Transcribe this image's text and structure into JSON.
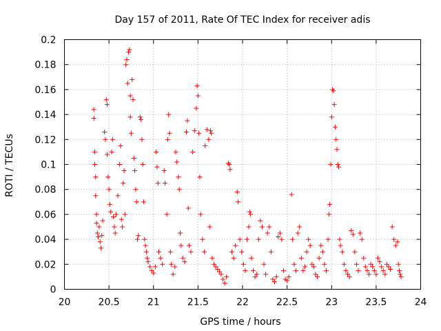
{
  "chart_data": {
    "type": "scatter",
    "title": "Day 157 of 2011, Rate Of TEC Index for receiver adis",
    "xlabel": "GPS time / hours",
    "ylabel": "ROTI / TECUs",
    "xlim": [
      20,
      24
    ],
    "ylim": [
      0,
      0.2
    ],
    "xticks": [
      "20",
      "20.5",
      "21",
      "21.5",
      "22",
      "22.5",
      "23",
      "23.5",
      "24"
    ],
    "yticks": [
      "0",
      "0.02",
      "0.04",
      "0.06",
      "0.08",
      "0.1",
      "0.12",
      "0.14",
      "0.16",
      "0.18",
      "0.2"
    ],
    "grid": true,
    "marker": "plus",
    "series": [
      {
        "name": "ROTI",
        "color": "#ff0000",
        "points": [
          [
            20.33,
            0.144
          ],
          [
            20.33,
            0.137
          ],
          [
            20.34,
            0.11
          ],
          [
            20.34,
            0.1
          ],
          [
            20.35,
            0.09
          ],
          [
            20.35,
            0.075
          ],
          [
            20.36,
            0.06
          ],
          [
            20.36,
            0.053
          ],
          [
            20.37,
            0.045
          ],
          [
            20.38,
            0.042
          ],
          [
            20.39,
            0.05
          ],
          [
            20.4,
            0.038
          ],
          [
            20.41,
            0.033
          ],
          [
            20.42,
            0.043
          ],
          [
            20.43,
            0.055
          ],
          [
            20.45,
            0.126
          ],
          [
            20.46,
            0.12
          ],
          [
            20.47,
            0.152
          ],
          [
            20.48,
            0.148
          ],
          [
            20.48,
            0.108
          ],
          [
            20.49,
            0.09
          ],
          [
            20.5,
            0.08
          ],
          [
            20.51,
            0.068
          ],
          [
            20.52,
            0.062
          ],
          [
            20.53,
            0.11
          ],
          [
            20.54,
            0.12
          ],
          [
            20.55,
            0.058
          ],
          [
            20.56,
            0.05
          ],
          [
            20.57,
            0.045
          ],
          [
            20.58,
            0.06
          ],
          [
            20.6,
            0.075
          ],
          [
            20.62,
            0.1
          ],
          [
            20.63,
            0.115
          ],
          [
            20.64,
            0.056
          ],
          [
            20.65,
            0.05
          ],
          [
            20.66,
            0.085
          ],
          [
            20.67,
            0.095
          ],
          [
            20.68,
            0.06
          ],
          [
            20.69,
            0.18
          ],
          [
            20.7,
            0.184
          ],
          [
            20.71,
            0.165
          ],
          [
            20.72,
            0.19
          ],
          [
            20.73,
            0.192
          ],
          [
            20.74,
            0.155
          ],
          [
            20.74,
            0.138
          ],
          [
            20.75,
            0.125
          ],
          [
            20.76,
            0.168
          ],
          [
            20.77,
            0.152
          ],
          [
            20.78,
            0.105
          ],
          [
            20.79,
            0.095
          ],
          [
            20.8,
            0.08
          ],
          [
            20.81,
            0.07
          ],
          [
            20.82,
            0.04
          ],
          [
            20.83,
            0.043
          ],
          [
            20.85,
            0.138
          ],
          [
            20.86,
            0.136
          ],
          [
            20.87,
            0.12
          ],
          [
            20.88,
            0.1
          ],
          [
            20.89,
            0.07
          ],
          [
            20.9,
            0.04
          ],
          [
            20.91,
            0.035
          ],
          [
            20.92,
            0.03
          ],
          [
            20.93,
            0.025
          ],
          [
            20.94,
            0.022
          ],
          [
            20.96,
            0.018
          ],
          [
            20.98,
            0.015
          ],
          [
            21.0,
            0.013
          ],
          [
            21.02,
            0.018
          ],
          [
            21.03,
            0.11
          ],
          [
            21.04,
            0.098
          ],
          [
            21.05,
            0.085
          ],
          [
            21.06,
            0.03
          ],
          [
            21.08,
            0.025
          ],
          [
            21.1,
            0.02
          ],
          [
            21.12,
            0.095
          ],
          [
            21.13,
            0.085
          ],
          [
            21.15,
            0.06
          ],
          [
            21.16,
            0.12
          ],
          [
            21.17,
            0.14
          ],
          [
            21.18,
            0.125
          ],
          [
            21.19,
            0.03
          ],
          [
            21.2,
            0.02
          ],
          [
            21.22,
            0.012
          ],
          [
            21.24,
            0.018
          ],
          [
            21.25,
            0.11
          ],
          [
            21.26,
            0.102
          ],
          [
            21.28,
            0.09
          ],
          [
            21.29,
            0.08
          ],
          [
            21.3,
            0.045
          ],
          [
            21.31,
            0.035
          ],
          [
            21.33,
            0.025
          ],
          [
            21.35,
            0.022
          ],
          [
            21.37,
            0.126
          ],
          [
            21.38,
            0.135
          ],
          [
            21.39,
            0.065
          ],
          [
            21.4,
            0.035
          ],
          [
            21.42,
            0.03
          ],
          [
            21.44,
            0.11
          ],
          [
            21.46,
            0.127
          ],
          [
            21.48,
            0.145
          ],
          [
            21.49,
            0.163
          ],
          [
            21.5,
            0.155
          ],
          [
            21.51,
            0.125
          ],
          [
            21.52,
            0.09
          ],
          [
            21.53,
            0.06
          ],
          [
            21.55,
            0.04
          ],
          [
            21.57,
            0.03
          ],
          [
            21.58,
            0.115
          ],
          [
            21.6,
            0.128
          ],
          [
            21.62,
            0.12
          ],
          [
            21.63,
            0.05
          ],
          [
            21.64,
            0.127
          ],
          [
            21.65,
            0.125
          ],
          [
            21.66,
            0.025
          ],
          [
            21.68,
            0.02
          ],
          [
            21.7,
            0.018
          ],
          [
            21.72,
            0.016
          ],
          [
            21.74,
            0.014
          ],
          [
            21.76,
            0.012
          ],
          [
            21.78,
            0.008
          ],
          [
            21.8,
            0.005
          ],
          [
            21.82,
            0.01
          ],
          [
            21.84,
            0.101
          ],
          [
            21.85,
            0.1
          ],
          [
            21.86,
            0.096
          ],
          [
            21.88,
            0.03
          ],
          [
            21.9,
            0.025
          ],
          [
            21.92,
            0.035
          ],
          [
            21.94,
            0.078
          ],
          [
            21.95,
            0.07
          ],
          [
            21.97,
            0.04
          ],
          [
            21.99,
            0.03
          ],
          [
            22.01,
            0.02
          ],
          [
            22.03,
            0.015
          ],
          [
            22.05,
            0.04
          ],
          [
            22.07,
            0.05
          ],
          [
            22.08,
            0.062
          ],
          [
            22.09,
            0.06
          ],
          [
            22.1,
            0.025
          ],
          [
            22.12,
            0.015
          ],
          [
            22.14,
            0.01
          ],
          [
            22.16,
            0.012
          ],
          [
            22.18,
            0.04
          ],
          [
            22.2,
            0.055
          ],
          [
            22.22,
            0.05
          ],
          [
            22.24,
            0.02
          ],
          [
            22.26,
            0.012
          ],
          [
            22.28,
            0.045
          ],
          [
            22.3,
            0.05
          ],
          [
            22.32,
            0.03
          ],
          [
            22.34,
            0.008
          ],
          [
            22.36,
            0.006
          ],
          [
            22.38,
            0.01
          ],
          [
            22.4,
            0.042
          ],
          [
            22.42,
            0.045
          ],
          [
            22.44,
            0.04
          ],
          [
            22.46,
            0.015
          ],
          [
            22.48,
            0.008
          ],
          [
            22.5,
            0.007
          ],
          [
            22.52,
            0.01
          ],
          [
            22.55,
            0.076
          ],
          [
            22.56,
            0.04
          ],
          [
            22.58,
            0.02
          ],
          [
            22.6,
            0.015
          ],
          [
            22.62,
            0.045
          ],
          [
            22.64,
            0.05
          ],
          [
            22.66,
            0.025
          ],
          [
            22.68,
            0.015
          ],
          [
            22.7,
            0.018
          ],
          [
            22.72,
            0.03
          ],
          [
            22.74,
            0.04
          ],
          [
            22.76,
            0.035
          ],
          [
            22.78,
            0.02
          ],
          [
            22.8,
            0.018
          ],
          [
            22.82,
            0.012
          ],
          [
            22.84,
            0.01
          ],
          [
            22.86,
            0.025
          ],
          [
            22.88,
            0.035
          ],
          [
            22.9,
            0.03
          ],
          [
            22.92,
            0.02
          ],
          [
            22.94,
            0.015
          ],
          [
            22.96,
            0.04
          ],
          [
            22.97,
            0.06
          ],
          [
            22.98,
            0.068
          ],
          [
            22.99,
            0.1
          ],
          [
            23.0,
            0.138
          ],
          [
            23.01,
            0.16
          ],
          [
            23.02,
            0.159
          ],
          [
            23.03,
            0.148
          ],
          [
            23.04,
            0.13
          ],
          [
            23.05,
            0.12
          ],
          [
            23.06,
            0.112
          ],
          [
            23.07,
            0.1
          ],
          [
            23.08,
            0.098
          ],
          [
            23.09,
            0.04
          ],
          [
            23.1,
            0.035
          ],
          [
            23.12,
            0.03
          ],
          [
            23.14,
            0.02
          ],
          [
            23.16,
            0.015
          ],
          [
            23.18,
            0.012
          ],
          [
            23.2,
            0.01
          ],
          [
            23.22,
            0.047
          ],
          [
            23.24,
            0.044
          ],
          [
            23.26,
            0.03
          ],
          [
            23.28,
            0.02
          ],
          [
            23.3,
            0.015
          ],
          [
            23.32,
            0.045
          ],
          [
            23.34,
            0.04
          ],
          [
            23.36,
            0.025
          ],
          [
            23.38,
            0.018
          ],
          [
            23.4,
            0.015
          ],
          [
            23.42,
            0.012
          ],
          [
            23.44,
            0.02
          ],
          [
            23.46,
            0.018
          ],
          [
            23.48,
            0.015
          ],
          [
            23.5,
            0.012
          ],
          [
            23.52,
            0.025
          ],
          [
            23.54,
            0.022
          ],
          [
            23.56,
            0.018
          ],
          [
            23.58,
            0.015
          ],
          [
            23.6,
            0.012
          ],
          [
            23.62,
            0.02
          ],
          [
            23.64,
            0.018
          ],
          [
            23.66,
            0.016
          ],
          [
            23.68,
            0.05
          ],
          [
            23.7,
            0.04
          ],
          [
            23.72,
            0.035
          ],
          [
            23.74,
            0.038
          ],
          [
            23.75,
            0.02
          ],
          [
            23.76,
            0.015
          ],
          [
            23.77,
            0.012
          ],
          [
            23.78,
            0.01
          ]
        ]
      }
    ]
  }
}
